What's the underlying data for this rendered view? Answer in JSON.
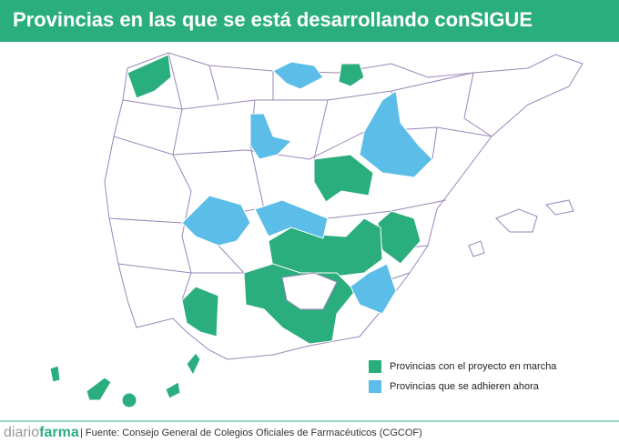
{
  "header": {
    "title": "Provincias en las que se está desarrollando conSIGUE"
  },
  "legend": [
    {
      "label": "Provincias con el proyecto en marcha",
      "color": "#2bae7e"
    },
    {
      "label": "Provincias que se adhieren ahora",
      "color": "#5bbde8"
    }
  ],
  "footer": {
    "brand_light": "diario",
    "brand_bold": "farma",
    "source": "| Fuente: Consejo General de Colegios Oficiales de Farmacéuticos (CGCOF)"
  }
}
